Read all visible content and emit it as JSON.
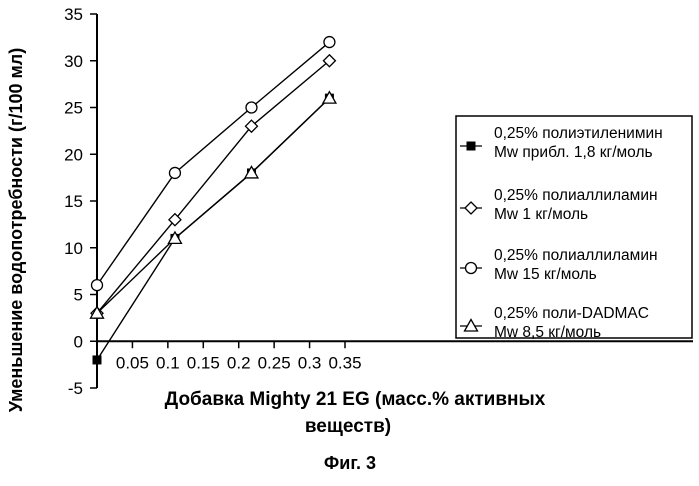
{
  "chart_data": {
    "type": "line",
    "xlabel_line1": "Добавка Mighty 21 EG (масс.% активных",
    "xlabel_line2": "веществ)",
    "ylabel": "Уменьшение водопотребности (г/100 мл)",
    "caption": "Фиг. 3",
    "xlim": [
      0,
      0.35
    ],
    "ylim": [
      -5,
      35
    ],
    "xticks": [
      {
        "v": 0.05,
        "label": "0.05"
      },
      {
        "v": 0.1,
        "label": "0.1"
      },
      {
        "v": 0.15,
        "label": "0.15"
      },
      {
        "v": 0.2,
        "label": "0.2"
      },
      {
        "v": 0.25,
        "label": "0.25"
      },
      {
        "v": 0.3,
        "label": "0.3"
      },
      {
        "v": 0.35,
        "label": "0.35"
      }
    ],
    "yticks": [
      {
        "v": -5,
        "label": "-5"
      },
      {
        "v": 0,
        "label": "0"
      },
      {
        "v": 5,
        "label": "5"
      },
      {
        "v": 10,
        "label": "10"
      },
      {
        "v": 15,
        "label": "15"
      },
      {
        "v": 20,
        "label": "20"
      },
      {
        "v": 25,
        "label": "25"
      },
      {
        "v": 30,
        "label": "30"
      },
      {
        "v": 35,
        "label": "35"
      }
    ],
    "series": [
      {
        "name_line1": "0,25% полиэтиленимин",
        "name_line2": "Mw прибл. 1,8 кг/моль",
        "marker": "square",
        "x": [
          0.0,
          0.11,
          0.218,
          0.328
        ],
        "y": [
          -2,
          11,
          18,
          26
        ]
      },
      {
        "name_line1": "0,25% полиаллиламин",
        "name_line2": "Mw 1 кг/моль",
        "marker": "diamond",
        "x": [
          0.0,
          0.11,
          0.218,
          0.328
        ],
        "y": [
          3,
          13,
          23,
          30
        ]
      },
      {
        "name_line1": "0,25% полиаллиламин",
        "name_line2": "Mw 15 кг/моль",
        "marker": "circle",
        "x": [
          0.0,
          0.11,
          0.218,
          0.328
        ],
        "y": [
          6,
          18,
          25,
          32
        ]
      },
      {
        "name_line1": "0,25% поли-DADMAC",
        "name_line2": "Mw 8,5 кг/моль",
        "marker": "triangle",
        "x": [
          0.0,
          0.11,
          0.218,
          0.328
        ],
        "y": [
          3,
          11,
          18,
          26
        ]
      }
    ]
  }
}
